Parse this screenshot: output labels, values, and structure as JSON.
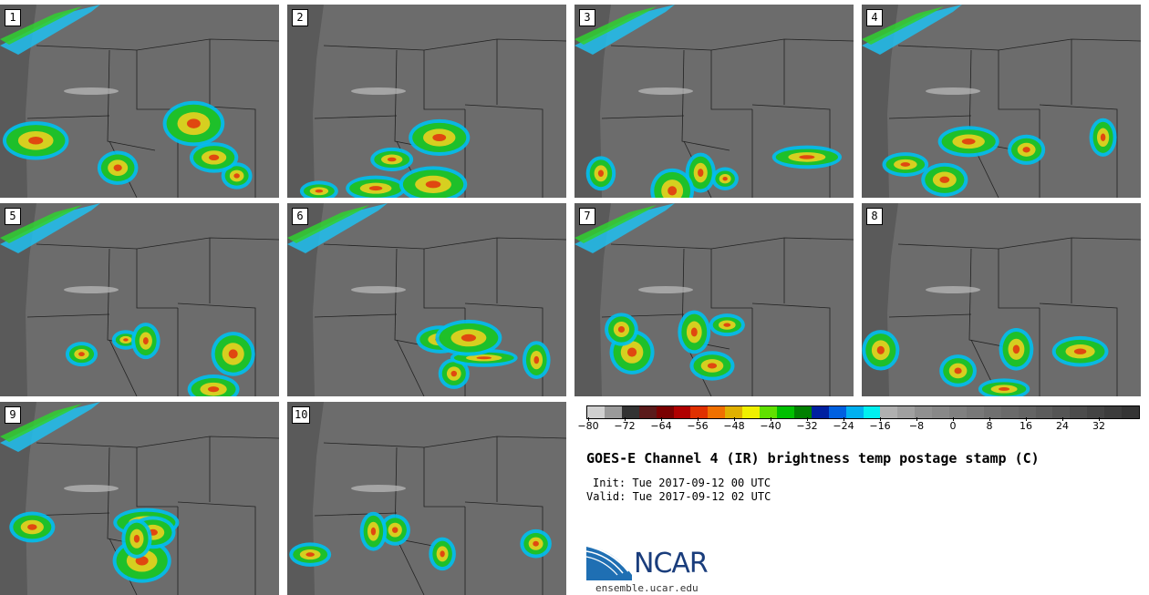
{
  "panels": [
    {
      "label": "1"
    },
    {
      "label": "2"
    },
    {
      "label": "3"
    },
    {
      "label": "4"
    },
    {
      "label": "5"
    },
    {
      "label": "6"
    },
    {
      "label": "7"
    },
    {
      "label": "8"
    },
    {
      "label": "9"
    },
    {
      "label": "10"
    }
  ],
  "colorbar": {
    "colors": [
      "#d0d0d0",
      "#9a9a9a",
      "#333333",
      "#5a1a1a",
      "#7a0000",
      "#b00000",
      "#e03000",
      "#f07000",
      "#e0b000",
      "#f0f000",
      "#60e000",
      "#00c000",
      "#008000",
      "#0020a0",
      "#0060e0",
      "#00b0f0",
      "#00f0f0",
      "#b0b0b0",
      "#a0a0a0",
      "#909090",
      "#888888",
      "#808080",
      "#787878",
      "#707070",
      "#6a6a6a",
      "#646464",
      "#5c5c5c",
      "#545454",
      "#4c4c4c",
      "#444444",
      "#3c3c3c",
      "#343434"
    ],
    "tick_labels": [
      "−80",
      "−72",
      "−64",
      "−56",
      "−48",
      "−40",
      "−32",
      "−24",
      "−16",
      "−8",
      "0",
      "8",
      "16",
      "24",
      "32"
    ]
  },
  "title": "GOES-E Channel 4 (IR) brightness temp postage stamp (C)",
  "init": "Init: Tue 2017-09-12 00 UTC",
  "valid": "Valid: Tue 2017-09-12 02 UTC",
  "logo": {
    "text": "NCAR",
    "site": "ensemble.ucar.edu"
  }
}
